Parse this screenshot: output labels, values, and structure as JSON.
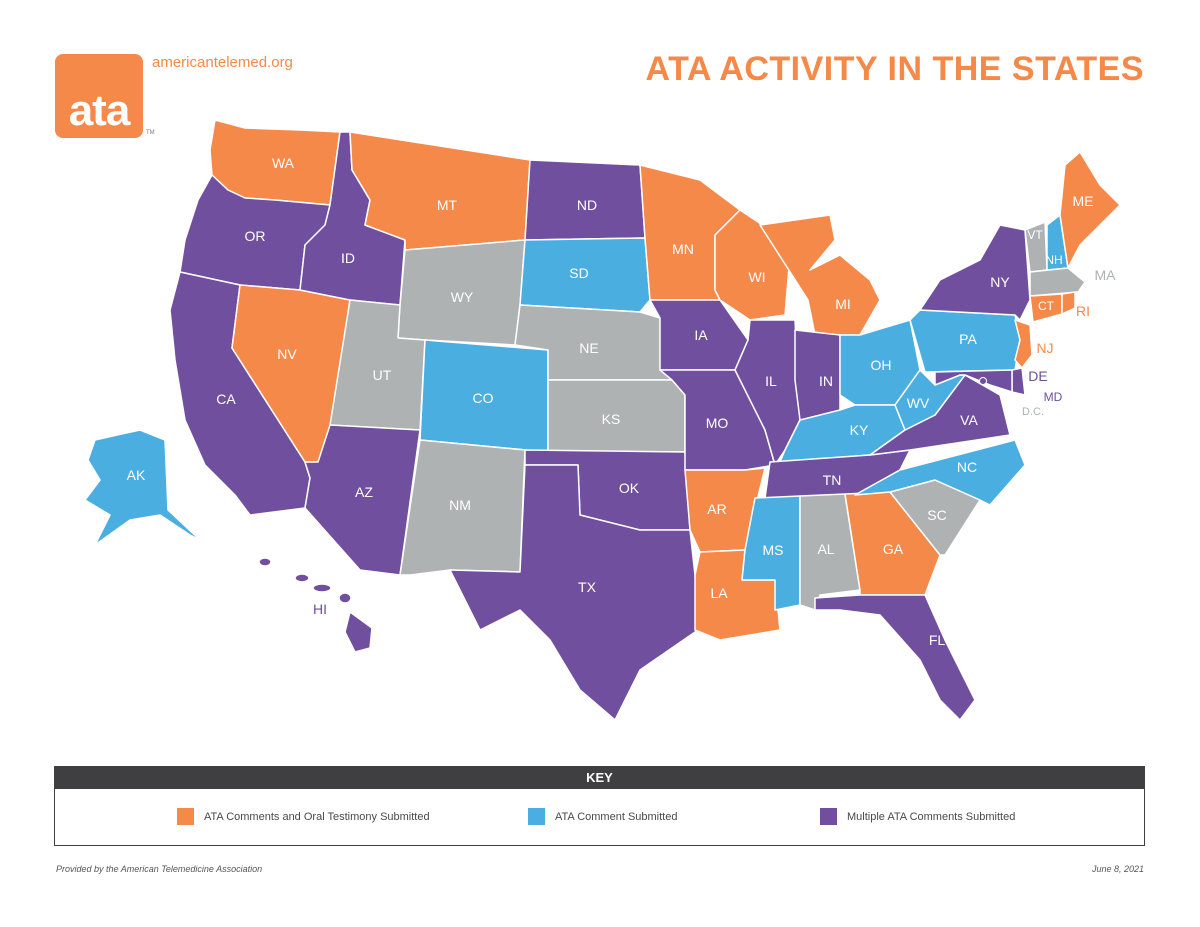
{
  "header": {
    "logo_text": "ata",
    "logo_tm": "TM",
    "website": "americantelemed.org",
    "title": "ATA ACTIVITY IN THE STATES"
  },
  "colors": {
    "orange": "#f4894a",
    "blue": "#4aaee0",
    "purple": "#6f4f9e",
    "gray": "#aeb2b3",
    "dark": "#3f3f41"
  },
  "states": {
    "WA": {
      "label": "WA",
      "category": "orange"
    },
    "OR": {
      "label": "OR",
      "category": "purple"
    },
    "CA": {
      "label": "CA",
      "category": "purple"
    },
    "ID": {
      "label": "ID",
      "category": "purple"
    },
    "NV": {
      "label": "NV",
      "category": "orange"
    },
    "MT": {
      "label": "MT",
      "category": "orange"
    },
    "WY": {
      "label": "WY",
      "category": "gray"
    },
    "UT": {
      "label": "UT",
      "category": "gray"
    },
    "AZ": {
      "label": "AZ",
      "category": "purple"
    },
    "CO": {
      "label": "CO",
      "category": "blue"
    },
    "NM": {
      "label": "NM",
      "category": "gray"
    },
    "ND": {
      "label": "ND",
      "category": "purple"
    },
    "SD": {
      "label": "SD",
      "category": "blue"
    },
    "NE": {
      "label": "NE",
      "category": "gray"
    },
    "KS": {
      "label": "KS",
      "category": "gray"
    },
    "OK": {
      "label": "OK",
      "category": "purple"
    },
    "TX": {
      "label": "TX",
      "category": "purple"
    },
    "MN": {
      "label": "MN",
      "category": "orange"
    },
    "IA": {
      "label": "IA",
      "category": "purple"
    },
    "MO": {
      "label": "MO",
      "category": "purple"
    },
    "AR": {
      "label": "AR",
      "category": "orange"
    },
    "LA": {
      "label": "LA",
      "category": "orange"
    },
    "WI": {
      "label": "WI",
      "category": "orange"
    },
    "IL": {
      "label": "IL",
      "category": "purple"
    },
    "MI": {
      "label": "MI",
      "category": "orange"
    },
    "IN": {
      "label": "IN",
      "category": "purple"
    },
    "OH": {
      "label": "OH",
      "category": "blue"
    },
    "KY": {
      "label": "KY",
      "category": "blue"
    },
    "TN": {
      "label": "TN",
      "category": "purple"
    },
    "MS": {
      "label": "MS",
      "category": "blue"
    },
    "AL": {
      "label": "AL",
      "category": "gray"
    },
    "GA": {
      "label": "GA",
      "category": "orange"
    },
    "FL": {
      "label": "FL",
      "category": "purple"
    },
    "SC": {
      "label": "SC",
      "category": "gray"
    },
    "NC": {
      "label": "NC",
      "category": "blue"
    },
    "VA": {
      "label": "VA",
      "category": "purple"
    },
    "WV": {
      "label": "WV",
      "category": "blue"
    },
    "PA": {
      "label": "PA",
      "category": "blue"
    },
    "NY": {
      "label": "NY",
      "category": "purple"
    },
    "VT": {
      "label": "VT",
      "category": "gray"
    },
    "NH": {
      "label": "NH",
      "category": "blue"
    },
    "ME": {
      "label": "ME",
      "category": "orange"
    },
    "MA": {
      "label": "MA",
      "category": "gray"
    },
    "CT": {
      "label": "CT",
      "category": "orange"
    },
    "RI": {
      "label": "RI",
      "category": "orange"
    },
    "NJ": {
      "label": "NJ",
      "category": "orange"
    },
    "DE": {
      "label": "DE",
      "category": "purple"
    },
    "MD": {
      "label": "MD",
      "category": "purple"
    },
    "DC": {
      "label": "D.C.",
      "category": "gray"
    },
    "AK": {
      "label": "AK",
      "category": "blue"
    },
    "HI": {
      "label": "HI",
      "category": "purple"
    }
  },
  "key": {
    "heading": "KEY",
    "items": [
      {
        "label": "ATA Comments and Oral Testimony Submitted",
        "category": "orange"
      },
      {
        "label": "ATA Comment Submitted",
        "category": "blue"
      },
      {
        "label": "Multiple ATA Comments Submitted",
        "category": "purple"
      }
    ]
  },
  "footer": {
    "source": "Provided by the American Telemedicine Association",
    "date": "June 8, 2021"
  }
}
